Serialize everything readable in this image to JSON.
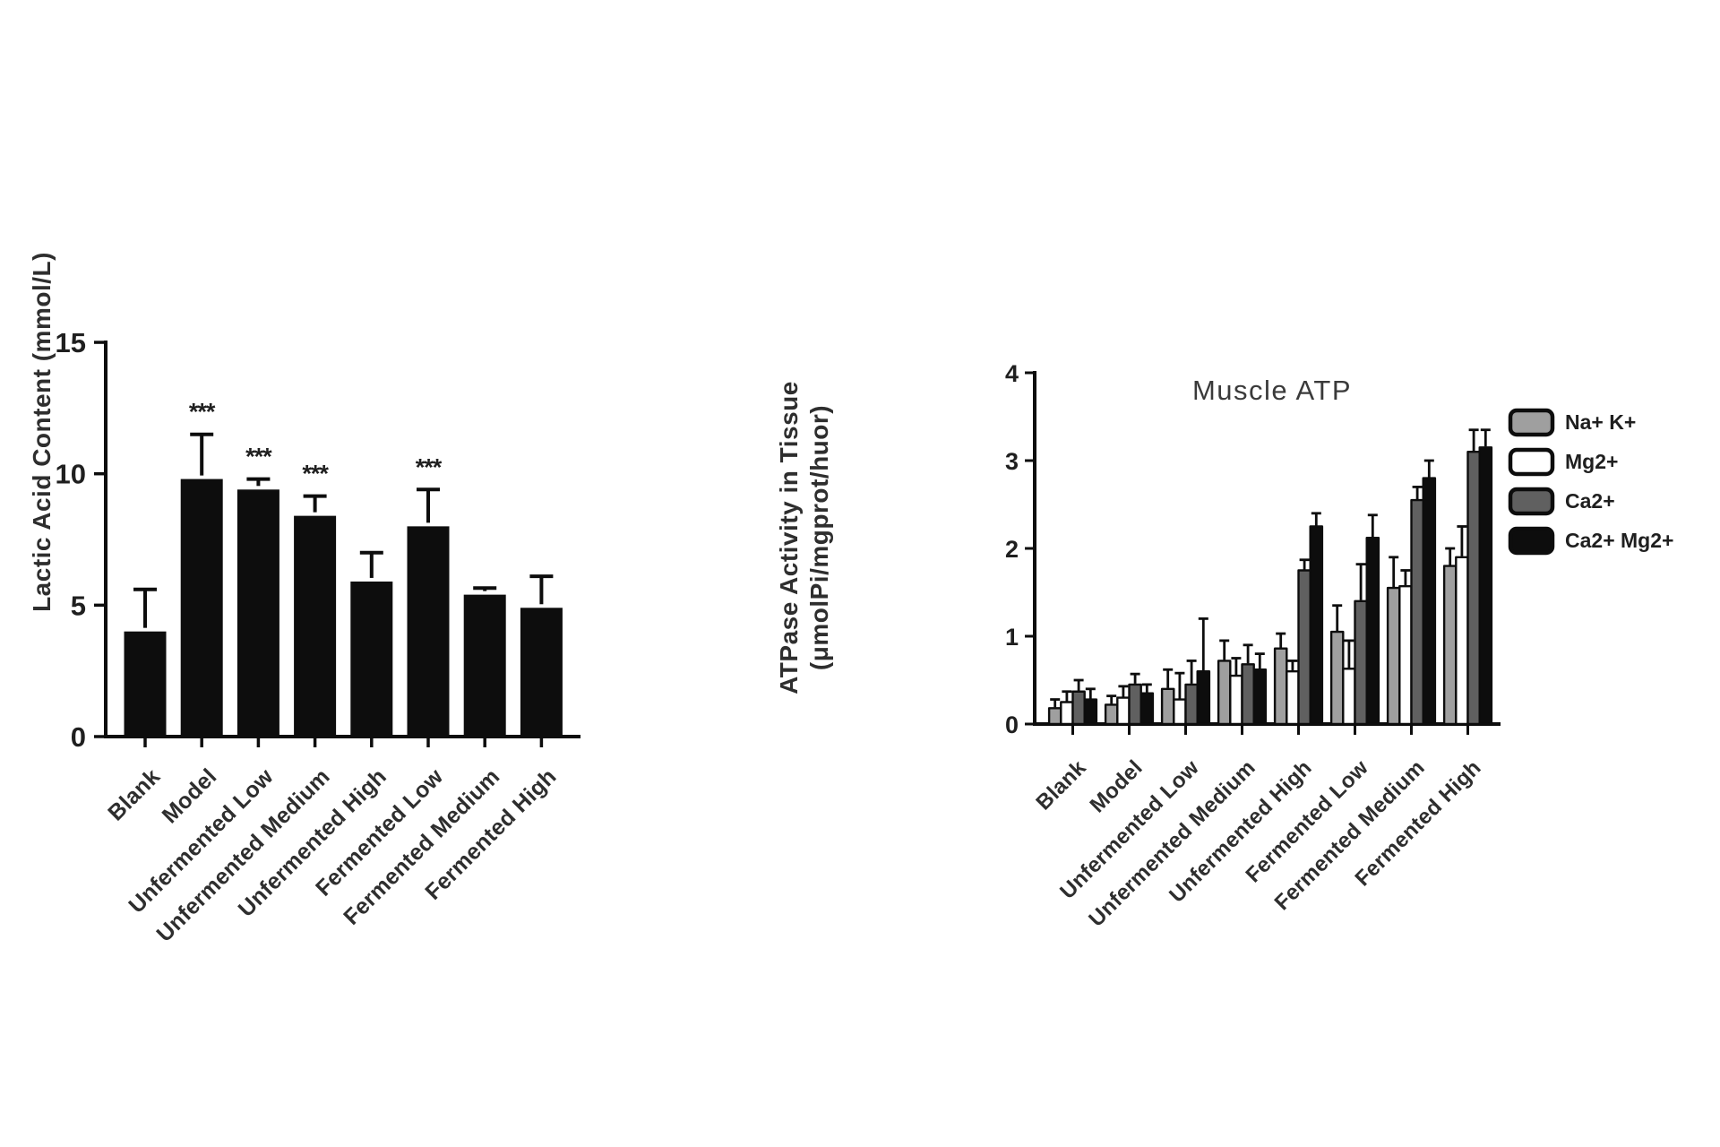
{
  "figure": {
    "background": "#ffffff",
    "axis_color": "#0d0d0d",
    "text_color": "#2e2e2e"
  },
  "chart_data": [
    {
      "type": "bar",
      "title": "",
      "ylabel": "Lactic Acid Content (mmol/L)",
      "xlabel": "",
      "ylim": [
        0,
        15
      ],
      "yticks": [
        0,
        5,
        10,
        15
      ],
      "grid": false,
      "bar_color": "#0d0d0d",
      "categories": [
        "Blank",
        "Model",
        "Unfermented Low",
        "Unfermented Medium",
        "Unfermented High",
        "Fermented Low",
        "Fermented Medium",
        "Fermented High"
      ],
      "values": [
        4.0,
        9.8,
        9.4,
        8.4,
        5.9,
        8.0,
        5.4,
        4.9
      ],
      "errors_plus": [
        1.6,
        1.7,
        0.4,
        0.75,
        1.1,
        1.4,
        0.25,
        1.2
      ],
      "significance": [
        "",
        "***",
        "***",
        "***",
        "",
        "***",
        "",
        ""
      ]
    },
    {
      "type": "bar",
      "title": "Muscle ATP",
      "ylabel_line1": "ATPase Activity in Tissue",
      "ylabel_line2": "(μmolPi/mgprot/huor)",
      "xlabel": "",
      "ylim": [
        0,
        4
      ],
      "yticks": [
        0,
        1,
        2,
        3,
        4
      ],
      "grid": false,
      "legend_position": "right",
      "categories": [
        "Blank",
        "Model",
        "Unfermented Low",
        "Unfermented Medium",
        "Unfermented High",
        "Fermented Low",
        "Fermented Medium",
        "Fermented High"
      ],
      "series": [
        {
          "name": "Na+ K+",
          "color": "#9f9f9f",
          "values": [
            0.18,
            0.22,
            0.4,
            0.72,
            0.86,
            1.05,
            1.55,
            1.8
          ],
          "errors_plus": [
            0.1,
            0.1,
            0.22,
            0.23,
            0.17,
            0.3,
            0.35,
            0.2
          ]
        },
        {
          "name": "Mg2+",
          "color": "#ffffff",
          "values": [
            0.25,
            0.3,
            0.28,
            0.55,
            0.6,
            0.63,
            1.57,
            1.9
          ],
          "errors_plus": [
            0.12,
            0.13,
            0.3,
            0.2,
            0.12,
            0.32,
            0.18,
            0.35
          ]
        },
        {
          "name": "Ca2+",
          "color": "#606060",
          "values": [
            0.37,
            0.45,
            0.45,
            0.68,
            1.75,
            1.4,
            2.55,
            3.1
          ],
          "errors_plus": [
            0.13,
            0.12,
            0.27,
            0.22,
            0.12,
            0.42,
            0.15,
            0.25
          ]
        },
        {
          "name": "Ca2+ Mg2+",
          "color": "#0d0d0d",
          "values": [
            0.28,
            0.35,
            0.6,
            0.62,
            2.25,
            2.12,
            2.8,
            3.15
          ],
          "errors_plus": [
            0.12,
            0.1,
            0.6,
            0.18,
            0.15,
            0.26,
            0.2,
            0.2
          ]
        }
      ]
    }
  ]
}
